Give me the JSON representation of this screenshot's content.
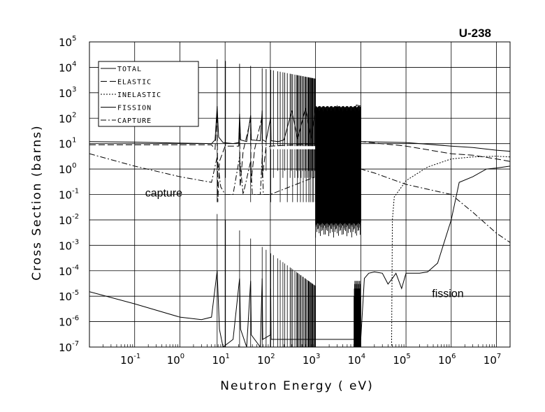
{
  "chart_data": {
    "type": "line",
    "title": "U-238",
    "xlabel": "Neutron Energy ( eV)",
    "ylabel": "Cross Section (barns)",
    "x_scale": "log",
    "y_scale": "log",
    "xlim": [
      0.01,
      20000000
    ],
    "ylim": [
      1e-07,
      100000
    ],
    "grid": true,
    "legend_position": "top-left",
    "x_ticks": [
      {
        "base": "10",
        "exp": "-1",
        "value": 0.1
      },
      {
        "base": "10",
        "exp": "0",
        "value": 1
      },
      {
        "base": "10",
        "exp": "1",
        "value": 10
      },
      {
        "base": "10",
        "exp": "2",
        "value": 100
      },
      {
        "base": "10",
        "exp": "3",
        "value": 1000
      },
      {
        "base": "10",
        "exp": "4",
        "value": 10000
      },
      {
        "base": "10",
        "exp": "5",
        "value": 100000
      },
      {
        "base": "10",
        "exp": "6",
        "value": 1000000
      },
      {
        "base": "10",
        "exp": "7",
        "value": 10000000
      }
    ],
    "y_ticks": [
      {
        "base": "10",
        "exp": "-7",
        "value": 1e-07
      },
      {
        "base": "10",
        "exp": "-6",
        "value": 1e-06
      },
      {
        "base": "10",
        "exp": "-5",
        "value": 1e-05
      },
      {
        "base": "10",
        "exp": "-4",
        "value": 0.0001
      },
      {
        "base": "10",
        "exp": "-3",
        "value": 0.001
      },
      {
        "base": "10",
        "exp": "-2",
        "value": 0.01
      },
      {
        "base": "10",
        "exp": "-1",
        "value": 0.1
      },
      {
        "base": "10",
        "exp": "0",
        "value": 1
      },
      {
        "base": "10",
        "exp": "1",
        "value": 10
      },
      {
        "base": "10",
        "exp": "2",
        "value": 100
      },
      {
        "base": "10",
        "exp": "3",
        "value": 1000
      },
      {
        "base": "10",
        "exp": "4",
        "value": 10000
      },
      {
        "base": "10",
        "exp": "5",
        "value": 100000
      }
    ],
    "legend": [
      {
        "label": "TOTAL",
        "dash": "solid"
      },
      {
        "label": "ELASTIC",
        "dash": "longdash"
      },
      {
        "label": "INELASTIC",
        "dash": "dotted"
      },
      {
        "label": "FISSION",
        "dash": "solid"
      },
      {
        "label": "CAPTURE",
        "dash": "dashdot"
      }
    ],
    "annotations": [
      {
        "text": "capture",
        "x": 5,
        "y": 0.12
      },
      {
        "text": "fission",
        "x": 500000,
        "y": 1.2e-05
      }
    ],
    "series": [
      {
        "name": "TOTAL",
        "dash": "solid",
        "points": [
          [
            0.01,
            12
          ],
          [
            0.1,
            11.5
          ],
          [
            1,
            10.5
          ],
          [
            5,
            10
          ],
          [
            6,
            14
          ],
          [
            6.67,
            300
          ],
          [
            7.2,
            18
          ],
          [
            9,
            11
          ],
          [
            15,
            10
          ],
          [
            20,
            11
          ],
          [
            20.9,
            150
          ],
          [
            22,
            14
          ],
          [
            30,
            12
          ],
          [
            36.7,
            130
          ],
          [
            38,
            14
          ],
          [
            60,
            13
          ],
          [
            66,
            200
          ],
          [
            67,
            14
          ],
          [
            80,
            12
          ],
          [
            102,
            110
          ],
          [
            104,
            13
          ],
          [
            150,
            12
          ],
          [
            200,
            14
          ],
          [
            300,
            200
          ],
          [
            400,
            15
          ],
          [
            600,
            250
          ],
          [
            800,
            16
          ],
          [
            1000,
            300
          ],
          [
            2000,
            18
          ],
          [
            3000,
            300
          ],
          [
            5000,
            20
          ],
          [
            8000,
            330
          ],
          [
            10000,
            300
          ],
          [
            10000,
            12
          ],
          [
            100000,
            11
          ],
          [
            1000000,
            8
          ],
          [
            3000000,
            7
          ],
          [
            10000000,
            5.5
          ],
          [
            20000000,
            5
          ]
        ]
      },
      {
        "name": "ELASTIC",
        "dash": "longdash",
        "points": [
          [
            0.01,
            9
          ],
          [
            1,
            9
          ],
          [
            5,
            9
          ],
          [
            6,
            6
          ],
          [
            6.67,
            200
          ],
          [
            6.9,
            0.05
          ],
          [
            7.5,
            2
          ],
          [
            10,
            8
          ],
          [
            20,
            8
          ],
          [
            20.9,
            100
          ],
          [
            21.5,
            0.2
          ],
          [
            25,
            5
          ],
          [
            36.7,
            90
          ],
          [
            37.5,
            0.3
          ],
          [
            45,
            6
          ],
          [
            66,
            120
          ],
          [
            67,
            0.5
          ],
          [
            80,
            7
          ],
          [
            100,
            8
          ],
          [
            1000,
            10
          ],
          [
            10000,
            12
          ],
          [
            100000,
            8
          ],
          [
            1000000,
            4
          ],
          [
            3000000,
            3.5
          ],
          [
            10000000,
            2.5
          ],
          [
            20000000,
            2
          ]
        ]
      },
      {
        "name": "INELASTIC",
        "dash": "dotted",
        "points": [
          [
            45000,
            1e-07
          ],
          [
            48000,
            1e-07
          ],
          [
            50000,
            0.01
          ],
          [
            55000,
            0.08
          ],
          [
            80000,
            0.2
          ],
          [
            100000,
            0.35
          ],
          [
            300000,
            1.2
          ],
          [
            1000000,
            2.5
          ],
          [
            3000000,
            3
          ],
          [
            10000000,
            3.2
          ],
          [
            20000000,
            3
          ]
        ]
      },
      {
        "name": "FISSION",
        "dash": "solid",
        "points": [
          [
            0.01,
            1.5e-05
          ],
          [
            0.1,
            5e-06
          ],
          [
            1,
            1.5e-06
          ],
          [
            3,
            1.2e-06
          ],
          [
            5,
            1.5e-06
          ],
          [
            6.67,
            0.0001
          ],
          [
            7.5,
            5e-07
          ],
          [
            9,
            1e-07
          ],
          [
            15,
            2e-07
          ],
          [
            20.9,
            5e-05
          ],
          [
            22,
            5e-07
          ],
          [
            30,
            1e-07
          ],
          [
            36.7,
            4e-05
          ],
          [
            38,
            3e-07
          ],
          [
            60,
            1e-07
          ],
          [
            66,
            5e-05
          ],
          [
            68,
            2e-07
          ],
          [
            100,
            3e-07
          ],
          [
            102,
            2e-05
          ],
          [
            104,
            2e-07
          ],
          [
            1000,
            2e-07
          ],
          [
            10000,
            2e-07
          ],
          [
            12000,
            5e-05
          ],
          [
            15000,
            8e-05
          ],
          [
            20000,
            9e-05
          ],
          [
            30000,
            8e-05
          ],
          [
            40000,
            3e-05
          ],
          [
            50000,
            5e-05
          ],
          [
            60000,
            8e-05
          ],
          [
            80000,
            2e-05
          ],
          [
            100000,
            8e-05
          ],
          [
            200000,
            8e-05
          ],
          [
            300000,
            9e-05
          ],
          [
            500000,
            0.0002
          ],
          [
            1000000,
            0.01
          ],
          [
            1500000,
            0.3
          ],
          [
            3000000,
            0.5
          ],
          [
            6000000,
            1
          ],
          [
            10000000,
            1.1
          ],
          [
            20000000,
            1.3
          ]
        ]
      },
      {
        "name": "CAPTURE",
        "dash": "dashdot",
        "points": [
          [
            0.01,
            4
          ],
          [
            0.1,
            1.3
          ],
          [
            1,
            0.5
          ],
          [
            5,
            0.3
          ],
          [
            6.67,
            3
          ],
          [
            8,
            0.2
          ],
          [
            10,
            0.1
          ],
          [
            15,
            0.1
          ],
          [
            20.9,
            3
          ],
          [
            25,
            0.1
          ],
          [
            36.7,
            2
          ],
          [
            40,
            0.1
          ],
          [
            60,
            0.1
          ],
          [
            66,
            3
          ],
          [
            70,
            0.1
          ],
          [
            100,
            0.1
          ],
          [
            1000,
            0.5
          ],
          [
            10000,
            1
          ],
          [
            20000,
            0.7
          ],
          [
            100000,
            0.25
          ],
          [
            1000000,
            0.1
          ],
          [
            3000000,
            0.02
          ],
          [
            10000000,
            0.003
          ],
          [
            20000000,
            0.0013
          ]
        ]
      }
    ],
    "resonances": [
      6.67,
      10.2,
      20.9,
      36.7,
      66,
      80.7,
      102.5,
      116.9,
      145.7,
      165.3,
      189.7,
      208.5,
      237.4,
      273.7,
      291,
      311.3,
      347.8,
      376.9,
      397.6,
      410.3,
      434,
      463,
      478,
      518,
      535,
      580,
      594,
      620,
      661,
      692,
      708,
      721,
      730,
      765,
      790,
      820,
      851,
      857,
      866,
      905,
      937,
      958,
      992
    ]
  }
}
